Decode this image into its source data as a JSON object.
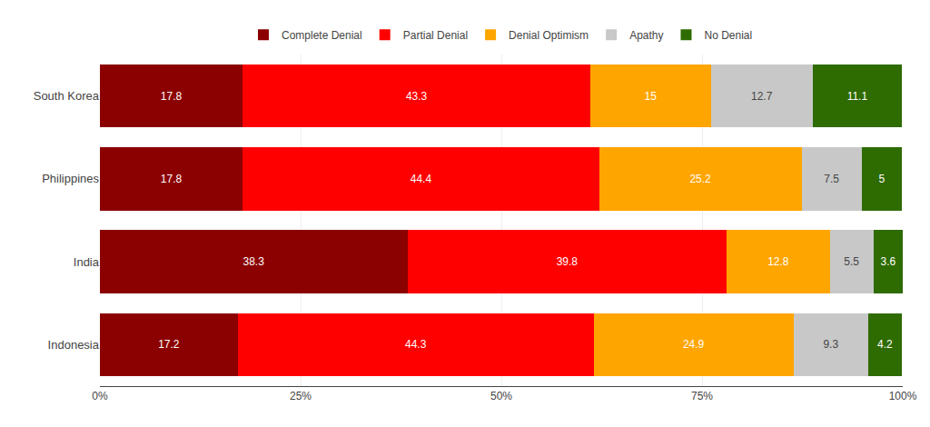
{
  "chart_data": {
    "type": "bar",
    "orientation": "horizontal",
    "stacked": true,
    "categories": [
      "South Korea",
      "Philippines",
      "India",
      "Indonesia"
    ],
    "series": [
      {
        "name": "Complete Denial",
        "color": "#8B0000",
        "values": [
          17.8,
          17.8,
          38.3,
          17.2
        ]
      },
      {
        "name": "Partial Denial",
        "color": "#FF0000",
        "values": [
          43.3,
          44.4,
          39.8,
          44.3
        ]
      },
      {
        "name": "Denial Optimism",
        "color": "#FFA500",
        "values": [
          15,
          25.2,
          12.8,
          24.9
        ]
      },
      {
        "name": "Apathy",
        "color": "#C8C8C8",
        "values": [
          12.7,
          7.5,
          5.5,
          9.3
        ]
      },
      {
        "name": "No Denial",
        "color": "#2E6B00",
        "values": [
          11.1,
          5,
          3.6,
          4.2
        ]
      }
    ],
    "xlim": [
      0,
      100
    ],
    "xticks": [
      {
        "value": 0,
        "label": "0%"
      },
      {
        "value": 25,
        "label": "25%"
      },
      {
        "value": 50,
        "label": "50%"
      },
      {
        "value": 75,
        "label": "75%"
      },
      {
        "value": 100,
        "label": "100%"
      }
    ],
    "grid": true,
    "legend": "top",
    "data_labels": true
  }
}
